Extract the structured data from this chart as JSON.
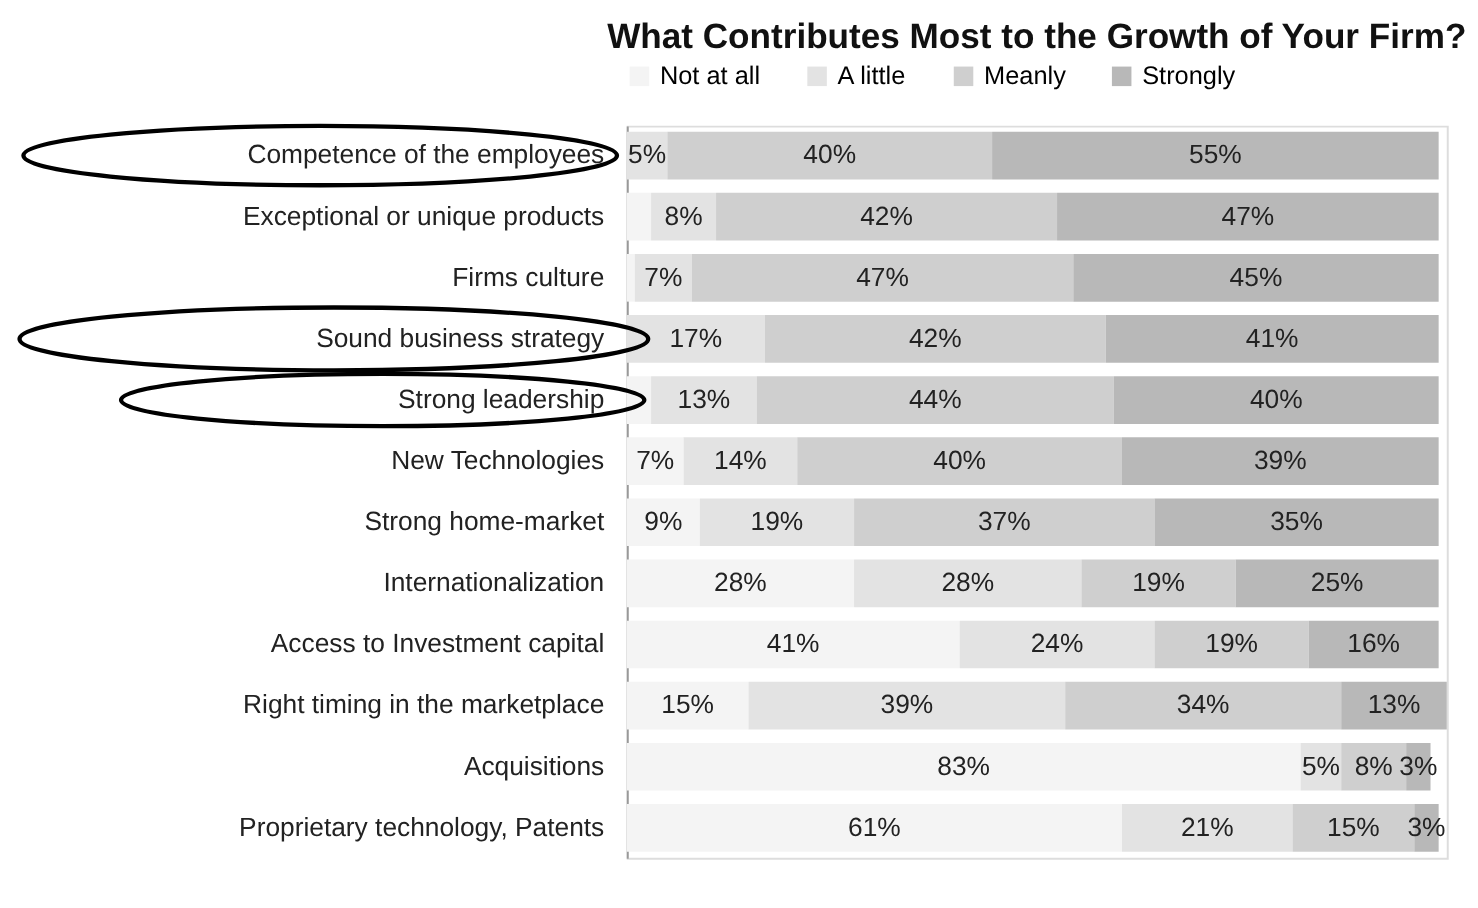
{
  "chart_data": {
    "type": "bar",
    "orientation": "horizontal",
    "stacked": true,
    "tick_labels": "y",
    "title": "What Contributes Most to the Growth of Your Firm?",
    "legend": "top",
    "categories": [
      "Competence of the employees",
      "Exceptional or unique products",
      "Firms culture",
      "Sound business strategy",
      "Strong leadership",
      "New Technologies",
      "Strong home-market",
      "Internationalization",
      "Access to Investment capital",
      "Right timing in the marketplace",
      "Acquisitions",
      "Proprietary technology, Patents"
    ],
    "series": [
      {
        "name": "Not at all",
        "color": "#f4f4f4",
        "values": [
          0,
          3,
          1,
          0,
          3,
          7,
          9,
          28,
          41,
          15,
          83,
          61
        ],
        "value_labels": [
          null,
          null,
          null,
          null,
          null,
          "7%",
          "9%",
          "28%",
          "41%",
          "15%",
          "83%",
          "61%"
        ]
      },
      {
        "name": "A little",
        "color": "#e3e3e3",
        "values": [
          5,
          8,
          7,
          17,
          13,
          14,
          19,
          28,
          24,
          39,
          5,
          21
        ],
        "value_labels": [
          "5%",
          "8%",
          "7%",
          "17%",
          "13%",
          "14%",
          "19%",
          "28%",
          "24%",
          "39%",
          "5%",
          "21%"
        ]
      },
      {
        "name": "Meanly",
        "color": "#cfcfcf",
        "values": [
          40,
          42,
          47,
          42,
          44,
          40,
          37,
          19,
          19,
          34,
          8,
          15
        ],
        "value_labels": [
          "40%",
          "42%",
          "47%",
          "42%",
          "44%",
          "40%",
          "37%",
          "19%",
          "19%",
          "34%",
          "8%",
          "15%"
        ]
      },
      {
        "name": "Strongly",
        "color": "#b8b8b8",
        "values": [
          55,
          47,
          45,
          41,
          40,
          39,
          35,
          25,
          16,
          13,
          3,
          3
        ],
        "value_labels": [
          "55%",
          "47%",
          "45%",
          "41%",
          "40%",
          "39%",
          "35%",
          "25%",
          "16%",
          "13%",
          "3%",
          "3%"
        ]
      }
    ]
  }
}
